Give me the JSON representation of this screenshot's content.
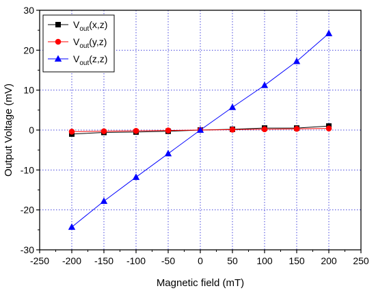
{
  "chart_data": {
    "type": "line",
    "title": "",
    "xlabel": "Magnetic field (mT)",
    "ylabel": "Output Voltage (mV)",
    "xlim": [
      -250,
      250
    ],
    "ylim": [
      -30,
      30
    ],
    "xticks": [
      -250,
      -200,
      -150,
      -100,
      -50,
      0,
      50,
      100,
      150,
      200,
      250
    ],
    "yticks": [
      -30,
      -20,
      -10,
      0,
      10,
      20,
      30
    ],
    "grid": true,
    "legend_position": "top-left",
    "x": [
      -200,
      -150,
      -100,
      -50,
      0,
      50,
      100,
      150,
      200
    ],
    "series": [
      {
        "name": "V_out(x,z)",
        "legend_main": "V",
        "legend_sub": "out",
        "legend_tail": "(x,z)",
        "color": "#000000",
        "marker": "square",
        "values": [
          -1.0,
          -0.6,
          -0.5,
          -0.3,
          0.0,
          0.2,
          0.5,
          0.5,
          1.0
        ]
      },
      {
        "name": "V_out(y,z)",
        "legend_main": "V",
        "legend_sub": "out",
        "legend_tail": "(y,z)",
        "color": "#ff0000",
        "marker": "circle",
        "values": [
          -0.4,
          -0.3,
          -0.2,
          -0.1,
          0.0,
          0.1,
          0.2,
          0.3,
          0.4
        ]
      },
      {
        "name": "V_out(z,z)",
        "legend_main": "V",
        "legend_sub": "out",
        "legend_tail": "(z,z)",
        "color": "#0000ff",
        "marker": "triangle",
        "values": [
          -24.3,
          -17.8,
          -11.8,
          -5.9,
          0.0,
          5.7,
          11.2,
          17.2,
          24.2
        ]
      }
    ]
  }
}
